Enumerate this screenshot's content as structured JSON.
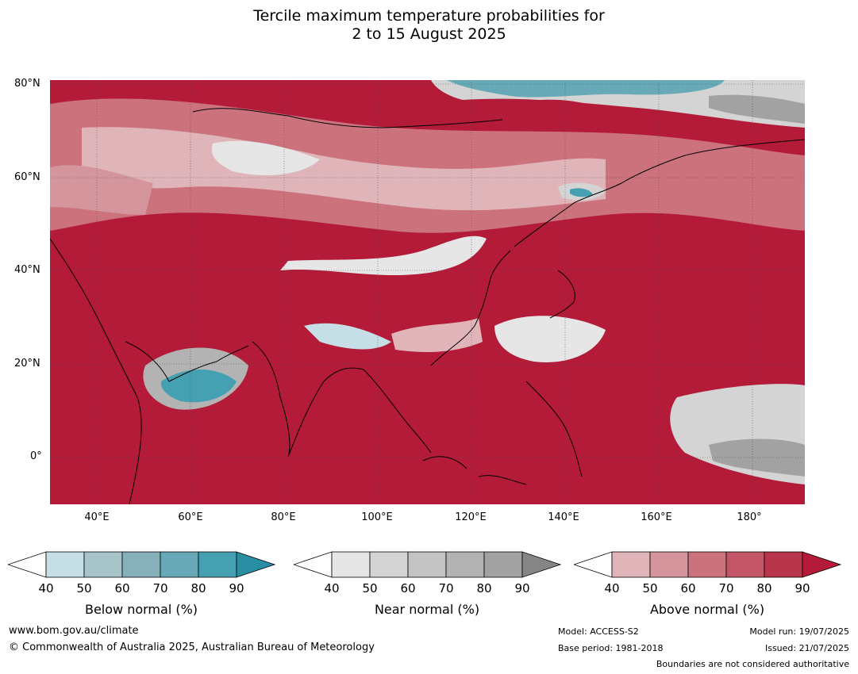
{
  "title_line1": "Tercile maximum temperature probabilities for",
  "title_line2": "2 to 15 August 2025",
  "map": {
    "lon_range": [
      30,
      191
    ],
    "lat_range": [
      -10,
      81
    ],
    "lat_ticks": [
      "80°N",
      "60°N",
      "40°N",
      "20°N",
      "0°"
    ],
    "lon_ticks": [
      "40°E",
      "60°E",
      "80°E",
      "100°E",
      "120°E",
      "140°E",
      "160°E",
      "180°"
    ],
    "ocean_color": "#b31b38"
  },
  "colorbars": [
    {
      "label": "Below normal (%)",
      "ticks": [
        "40",
        "50",
        "60",
        "70",
        "80",
        "90"
      ],
      "colors": [
        "#c6dfe6",
        "#a6c4ca",
        "#86b1bb",
        "#67a9b6",
        "#45a1b2",
        "#2a8ea3"
      ]
    },
    {
      "label": "Near normal (%)",
      "ticks": [
        "40",
        "50",
        "60",
        "70",
        "80",
        "90"
      ],
      "colors": [
        "#e6e6e6",
        "#d4d4d4",
        "#c3c3c3",
        "#b3b3b3",
        "#a2a2a2",
        "#858585"
      ]
    },
    {
      "label": "Above normal (%)",
      "ticks": [
        "40",
        "50",
        "60",
        "70",
        "80",
        "90"
      ],
      "colors": [
        "#e0b5ba",
        "#d4969c",
        "#cb727d",
        "#c25566",
        "#b8354b",
        "#b31b38"
      ]
    }
  ],
  "footer": {
    "website": "www.bom.gov.au/climate",
    "copyright": "© Commonwealth of Australia 2025, Australian Bureau of Meteorology",
    "model": "Model: ACCESS-S2",
    "base_period": "Base period: 1981-2018",
    "model_run": "Model run: 19/07/2025",
    "issued": "Issued: 21/07/2025",
    "disclaimer": "Boundaries are not considered authoritative"
  }
}
